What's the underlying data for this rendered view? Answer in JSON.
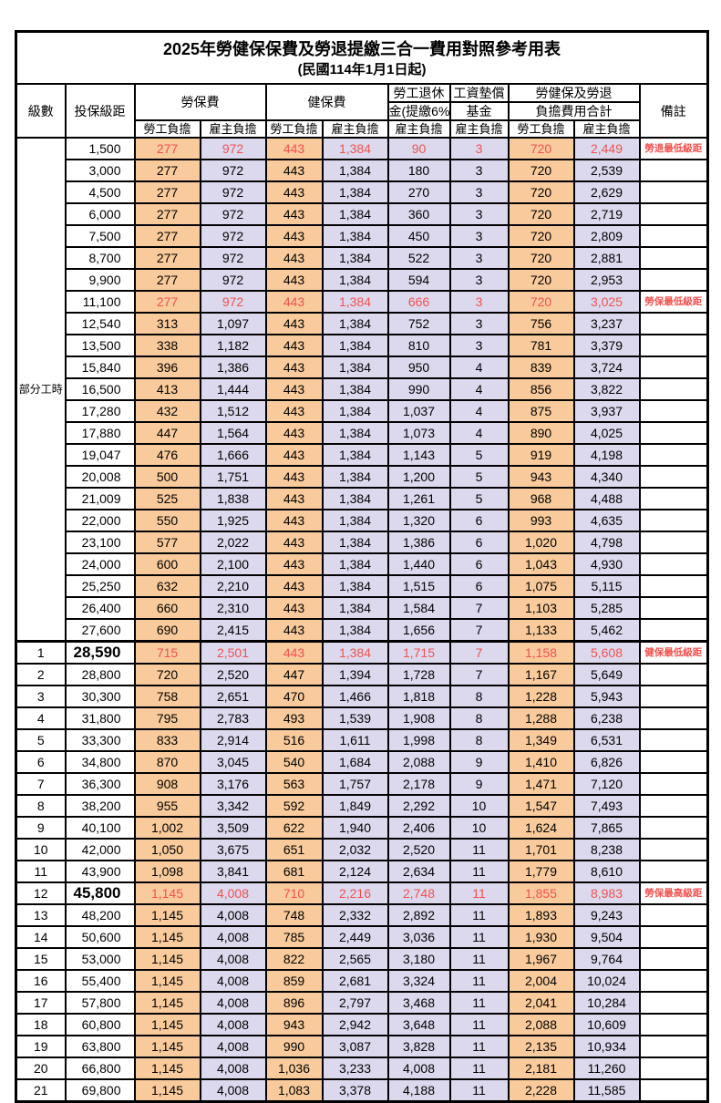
{
  "table": {
    "title": "2025年勞健保保費及勞退提繳三合一費用對照參考用表",
    "subtitle": "(民國114年1月1日起)",
    "headers": {
      "level": "級數",
      "bracket": "投保級距",
      "labor_insurance": "勞保費",
      "health_insurance": "健保費",
      "pension_line1": "勞工退休",
      "pension_line2": "金(提繳6%)",
      "wage_fund_line1": "工資墊償",
      "wage_fund_line2": "基金",
      "total_line1": "勞健保及勞退",
      "total_line2": "負擔費用合計",
      "remark": "備註",
      "employee_burden": "勞工負擔",
      "employer_burden": "雇主負擔"
    },
    "part_time_label": "部分工時",
    "colors": {
      "employee_bg": "#f9cb9c",
      "employer_bg": "#dcd9ee",
      "highlight_text": "#f0514f",
      "border": "#000000"
    },
    "rows": [
      {
        "level": "",
        "bracket": "1,500",
        "li_emp": "277",
        "li_er": "972",
        "hi_emp": "443",
        "hi_er": "1,384",
        "pension": "90",
        "fund": "3",
        "total_emp": "720",
        "total_er": "2,449",
        "note": "勞退最低級距",
        "red": true,
        "big": false
      },
      {
        "level": "",
        "bracket": "3,000",
        "li_emp": "277",
        "li_er": "972",
        "hi_emp": "443",
        "hi_er": "1,384",
        "pension": "180",
        "fund": "3",
        "total_emp": "720",
        "total_er": "2,539",
        "note": "",
        "red": false,
        "big": false
      },
      {
        "level": "",
        "bracket": "4,500",
        "li_emp": "277",
        "li_er": "972",
        "hi_emp": "443",
        "hi_er": "1,384",
        "pension": "270",
        "fund": "3",
        "total_emp": "720",
        "total_er": "2,629",
        "note": "",
        "red": false,
        "big": false
      },
      {
        "level": "",
        "bracket": "6,000",
        "li_emp": "277",
        "li_er": "972",
        "hi_emp": "443",
        "hi_er": "1,384",
        "pension": "360",
        "fund": "3",
        "total_emp": "720",
        "total_er": "2,719",
        "note": "",
        "red": false,
        "big": false
      },
      {
        "level": "",
        "bracket": "7,500",
        "li_emp": "277",
        "li_er": "972",
        "hi_emp": "443",
        "hi_er": "1,384",
        "pension": "450",
        "fund": "3",
        "total_emp": "720",
        "total_er": "2,809",
        "note": "",
        "red": false,
        "big": false
      },
      {
        "level": "",
        "bracket": "8,700",
        "li_emp": "277",
        "li_er": "972",
        "hi_emp": "443",
        "hi_er": "1,384",
        "pension": "522",
        "fund": "3",
        "total_emp": "720",
        "total_er": "2,881",
        "note": "",
        "red": false,
        "big": false
      },
      {
        "level": "",
        "bracket": "9,900",
        "li_emp": "277",
        "li_er": "972",
        "hi_emp": "443",
        "hi_er": "1,384",
        "pension": "594",
        "fund": "3",
        "total_emp": "720",
        "total_er": "2,953",
        "note": "",
        "red": false,
        "big": false
      },
      {
        "level": "",
        "bracket": "11,100",
        "li_emp": "277",
        "li_er": "972",
        "hi_emp": "443",
        "hi_er": "1,384",
        "pension": "666",
        "fund": "3",
        "total_emp": "720",
        "total_er": "3,025",
        "note": "勞保最低級距",
        "red": true,
        "big": false
      },
      {
        "level": "",
        "bracket": "12,540",
        "li_emp": "313",
        "li_er": "1,097",
        "hi_emp": "443",
        "hi_er": "1,384",
        "pension": "752",
        "fund": "3",
        "total_emp": "756",
        "total_er": "3,237",
        "note": "",
        "red": false,
        "big": false
      },
      {
        "level": "",
        "bracket": "13,500",
        "li_emp": "338",
        "li_er": "1,182",
        "hi_emp": "443",
        "hi_er": "1,384",
        "pension": "810",
        "fund": "3",
        "total_emp": "781",
        "total_er": "3,379",
        "note": "",
        "red": false,
        "big": false
      },
      {
        "level": "",
        "bracket": "15,840",
        "li_emp": "396",
        "li_er": "1,386",
        "hi_emp": "443",
        "hi_er": "1,384",
        "pension": "950",
        "fund": "4",
        "total_emp": "839",
        "total_er": "3,724",
        "note": "",
        "red": false,
        "big": false
      },
      {
        "level": "",
        "bracket": "16,500",
        "li_emp": "413",
        "li_er": "1,444",
        "hi_emp": "443",
        "hi_er": "1,384",
        "pension": "990",
        "fund": "4",
        "total_emp": "856",
        "total_er": "3,822",
        "note": "",
        "red": false,
        "big": false
      },
      {
        "level": "",
        "bracket": "17,280",
        "li_emp": "432",
        "li_er": "1,512",
        "hi_emp": "443",
        "hi_er": "1,384",
        "pension": "1,037",
        "fund": "4",
        "total_emp": "875",
        "total_er": "3,937",
        "note": "",
        "red": false,
        "big": false
      },
      {
        "level": "",
        "bracket": "17,880",
        "li_emp": "447",
        "li_er": "1,564",
        "hi_emp": "443",
        "hi_er": "1,384",
        "pension": "1,073",
        "fund": "4",
        "total_emp": "890",
        "total_er": "4,025",
        "note": "",
        "red": false,
        "big": false
      },
      {
        "level": "",
        "bracket": "19,047",
        "li_emp": "476",
        "li_er": "1,666",
        "hi_emp": "443",
        "hi_er": "1,384",
        "pension": "1,143",
        "fund": "5",
        "total_emp": "919",
        "total_er": "4,198",
        "note": "",
        "red": false,
        "big": false
      },
      {
        "level": "",
        "bracket": "20,008",
        "li_emp": "500",
        "li_er": "1,751",
        "hi_emp": "443",
        "hi_er": "1,384",
        "pension": "1,200",
        "fund": "5",
        "total_emp": "943",
        "total_er": "4,340",
        "note": "",
        "red": false,
        "big": false
      },
      {
        "level": "",
        "bracket": "21,009",
        "li_emp": "525",
        "li_er": "1,838",
        "hi_emp": "443",
        "hi_er": "1,384",
        "pension": "1,261",
        "fund": "5",
        "total_emp": "968",
        "total_er": "4,488",
        "note": "",
        "red": false,
        "big": false
      },
      {
        "level": "",
        "bracket": "22,000",
        "li_emp": "550",
        "li_er": "1,925",
        "hi_emp": "443",
        "hi_er": "1,384",
        "pension": "1,320",
        "fund": "6",
        "total_emp": "993",
        "total_er": "4,635",
        "note": "",
        "red": false,
        "big": false
      },
      {
        "level": "",
        "bracket": "23,100",
        "li_emp": "577",
        "li_er": "2,022",
        "hi_emp": "443",
        "hi_er": "1,384",
        "pension": "1,386",
        "fund": "6",
        "total_emp": "1,020",
        "total_er": "4,798",
        "note": "",
        "red": false,
        "big": false
      },
      {
        "level": "",
        "bracket": "24,000",
        "li_emp": "600",
        "li_er": "2,100",
        "hi_emp": "443",
        "hi_er": "1,384",
        "pension": "1,440",
        "fund": "6",
        "total_emp": "1,043",
        "total_er": "4,930",
        "note": "",
        "red": false,
        "big": false
      },
      {
        "level": "",
        "bracket": "25,250",
        "li_emp": "632",
        "li_er": "2,210",
        "hi_emp": "443",
        "hi_er": "1,384",
        "pension": "1,515",
        "fund": "6",
        "total_emp": "1,075",
        "total_er": "5,115",
        "note": "",
        "red": false,
        "big": false
      },
      {
        "level": "",
        "bracket": "26,400",
        "li_emp": "660",
        "li_er": "2,310",
        "hi_emp": "443",
        "hi_er": "1,384",
        "pension": "1,584",
        "fund": "7",
        "total_emp": "1,103",
        "total_er": "5,285",
        "note": "",
        "red": false,
        "big": false
      },
      {
        "level": "",
        "bracket": "27,600",
        "li_emp": "690",
        "li_er": "2,415",
        "hi_emp": "443",
        "hi_er": "1,384",
        "pension": "1,656",
        "fund": "7",
        "total_emp": "1,133",
        "total_er": "5,462",
        "note": "",
        "red": false,
        "big": false
      },
      {
        "level": "1",
        "bracket": "28,590",
        "li_emp": "715",
        "li_er": "2,501",
        "hi_emp": "443",
        "hi_er": "1,384",
        "pension": "1,715",
        "fund": "7",
        "total_emp": "1,158",
        "total_er": "5,608",
        "note": "健保最低級距",
        "red": true,
        "big": true
      },
      {
        "level": "2",
        "bracket": "28,800",
        "li_emp": "720",
        "li_er": "2,520",
        "hi_emp": "447",
        "hi_er": "1,394",
        "pension": "1,728",
        "fund": "7",
        "total_emp": "1,167",
        "total_er": "5,649",
        "note": "",
        "red": false,
        "big": false
      },
      {
        "level": "3",
        "bracket": "30,300",
        "li_emp": "758",
        "li_er": "2,651",
        "hi_emp": "470",
        "hi_er": "1,466",
        "pension": "1,818",
        "fund": "8",
        "total_emp": "1,228",
        "total_er": "5,943",
        "note": "",
        "red": false,
        "big": false
      },
      {
        "level": "4",
        "bracket": "31,800",
        "li_emp": "795",
        "li_er": "2,783",
        "hi_emp": "493",
        "hi_er": "1,539",
        "pension": "1,908",
        "fund": "8",
        "total_emp": "1,288",
        "total_er": "6,238",
        "note": "",
        "red": false,
        "big": false
      },
      {
        "level": "5",
        "bracket": "33,300",
        "li_emp": "833",
        "li_er": "2,914",
        "hi_emp": "516",
        "hi_er": "1,611",
        "pension": "1,998",
        "fund": "8",
        "total_emp": "1,349",
        "total_er": "6,531",
        "note": "",
        "red": false,
        "big": false
      },
      {
        "level": "6",
        "bracket": "34,800",
        "li_emp": "870",
        "li_er": "3,045",
        "hi_emp": "540",
        "hi_er": "1,684",
        "pension": "2,088",
        "fund": "9",
        "total_emp": "1,410",
        "total_er": "6,826",
        "note": "",
        "red": false,
        "big": false
      },
      {
        "level": "7",
        "bracket": "36,300",
        "li_emp": "908",
        "li_er": "3,176",
        "hi_emp": "563",
        "hi_er": "1,757",
        "pension": "2,178",
        "fund": "9",
        "total_emp": "1,471",
        "total_er": "7,120",
        "note": "",
        "red": false,
        "big": false
      },
      {
        "level": "8",
        "bracket": "38,200",
        "li_emp": "955",
        "li_er": "3,342",
        "hi_emp": "592",
        "hi_er": "1,849",
        "pension": "2,292",
        "fund": "10",
        "total_emp": "1,547",
        "total_er": "7,493",
        "note": "",
        "red": false,
        "big": false
      },
      {
        "level": "9",
        "bracket": "40,100",
        "li_emp": "1,002",
        "li_er": "3,509",
        "hi_emp": "622",
        "hi_er": "1,940",
        "pension": "2,406",
        "fund": "10",
        "total_emp": "1,624",
        "total_er": "7,865",
        "note": "",
        "red": false,
        "big": false
      },
      {
        "level": "10",
        "bracket": "42,000",
        "li_emp": "1,050",
        "li_er": "3,675",
        "hi_emp": "651",
        "hi_er": "2,032",
        "pension": "2,520",
        "fund": "11",
        "total_emp": "1,701",
        "total_er": "8,238",
        "note": "",
        "red": false,
        "big": false
      },
      {
        "level": "11",
        "bracket": "43,900",
        "li_emp": "1,098",
        "li_er": "3,841",
        "hi_emp": "681",
        "hi_er": "2,124",
        "pension": "2,634",
        "fund": "11",
        "total_emp": "1,779",
        "total_er": "8,610",
        "note": "",
        "red": false,
        "big": false
      },
      {
        "level": "12",
        "bracket": "45,800",
        "li_emp": "1,145",
        "li_er": "4,008",
        "hi_emp": "710",
        "hi_er": "2,216",
        "pension": "2,748",
        "fund": "11",
        "total_emp": "1,855",
        "total_er": "8,983",
        "note": "勞保最高級距",
        "red": true,
        "big": true
      },
      {
        "level": "13",
        "bracket": "48,200",
        "li_emp": "1,145",
        "li_er": "4,008",
        "hi_emp": "748",
        "hi_er": "2,332",
        "pension": "2,892",
        "fund": "11",
        "total_emp": "1,893",
        "total_er": "9,243",
        "note": "",
        "red": false,
        "big": false
      },
      {
        "level": "14",
        "bracket": "50,600",
        "li_emp": "1,145",
        "li_er": "4,008",
        "hi_emp": "785",
        "hi_er": "2,449",
        "pension": "3,036",
        "fund": "11",
        "total_emp": "1,930",
        "total_er": "9,504",
        "note": "",
        "red": false,
        "big": false
      },
      {
        "level": "15",
        "bracket": "53,000",
        "li_emp": "1,145",
        "li_er": "4,008",
        "hi_emp": "822",
        "hi_er": "2,565",
        "pension": "3,180",
        "fund": "11",
        "total_emp": "1,967",
        "total_er": "9,764",
        "note": "",
        "red": false,
        "big": false
      },
      {
        "level": "16",
        "bracket": "55,400",
        "li_emp": "1,145",
        "li_er": "4,008",
        "hi_emp": "859",
        "hi_er": "2,681",
        "pension": "3,324",
        "fund": "11",
        "total_emp": "2,004",
        "total_er": "10,024",
        "note": "",
        "red": false,
        "big": false
      },
      {
        "level": "17",
        "bracket": "57,800",
        "li_emp": "1,145",
        "li_er": "4,008",
        "hi_emp": "896",
        "hi_er": "2,797",
        "pension": "3,468",
        "fund": "11",
        "total_emp": "2,041",
        "total_er": "10,284",
        "note": "",
        "red": false,
        "big": false
      },
      {
        "level": "18",
        "bracket": "60,800",
        "li_emp": "1,145",
        "li_er": "4,008",
        "hi_emp": "943",
        "hi_er": "2,942",
        "pension": "3,648",
        "fund": "11",
        "total_emp": "2,088",
        "total_er": "10,609",
        "note": "",
        "red": false,
        "big": false
      },
      {
        "level": "19",
        "bracket": "63,800",
        "li_emp": "1,145",
        "li_er": "4,008",
        "hi_emp": "990",
        "hi_er": "3,087",
        "pension": "3,828",
        "fund": "11",
        "total_emp": "2,135",
        "total_er": "10,934",
        "note": "",
        "red": false,
        "big": false
      },
      {
        "level": "20",
        "bracket": "66,800",
        "li_emp": "1,145",
        "li_er": "4,008",
        "hi_emp": "1,036",
        "hi_er": "3,233",
        "pension": "4,008",
        "fund": "11",
        "total_emp": "2,181",
        "total_er": "11,260",
        "note": "",
        "red": false,
        "big": false
      },
      {
        "level": "21",
        "bracket": "69,800",
        "li_emp": "1,145",
        "li_er": "4,008",
        "hi_emp": "1,083",
        "hi_er": "3,378",
        "pension": "4,188",
        "fund": "11",
        "total_emp": "2,228",
        "total_er": "11,585",
        "note": "",
        "red": false,
        "big": false
      }
    ]
  }
}
